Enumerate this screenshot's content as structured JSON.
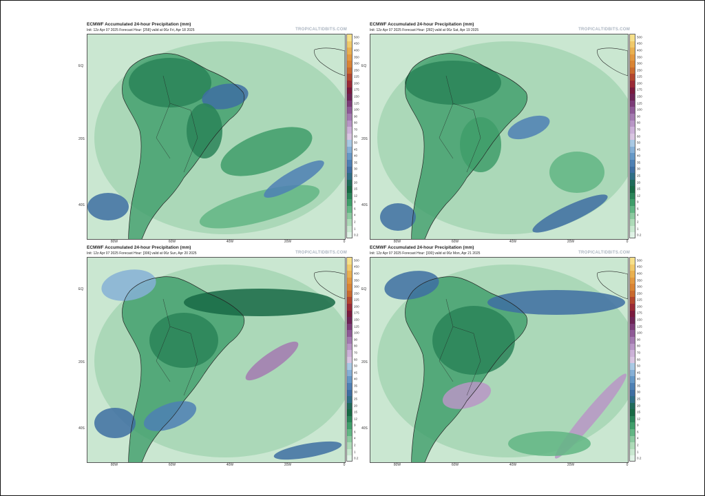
{
  "panels": [
    {
      "title": "ECMWF Accumulated 24-hour Precipitation (mm)",
      "subtitle": "Init: 12z Apr 07 2025   Forecast Hour: [258]   valid at 06z Fri, Apr 18 2025",
      "brand": "TROPICALTIDBITS.COM"
    },
    {
      "title": "ECMWF Accumulated 24-hour Precipitation (mm)",
      "subtitle": "Init: 12z Apr 07 2025   Forecast Hour: [282]   valid at 06z Sat, Apr 19 2025",
      "brand": "TROPICALTIDBITS.COM"
    },
    {
      "title": "ECMWF Accumulated 24-hour Precipitation (mm)",
      "subtitle": "Init: 12z Apr 07 2025   Forecast Hour: [306]   valid at 06z Sun, Apr 20 2025",
      "brand": "TROPICALTIDBITS.COM"
    },
    {
      "title": "ECMWF Accumulated 24-hour Precipitation (mm)",
      "subtitle": "Init: 12z Apr 07 2025   Forecast Hour: [330]   valid at 06z Mon, Apr 21 2025",
      "brand": "TROPICALTIDBITS.COM"
    }
  ],
  "lat_labels": [
    "EQ",
    "20S",
    "40S"
  ],
  "lon_labels": [
    "80W",
    "60W",
    "40W",
    "20W",
    "0"
  ],
  "colorbar": {
    "labels": [
      "500",
      "450",
      "400",
      "350",
      "300",
      "250",
      "225",
      "200",
      "175",
      "150",
      "125",
      "100",
      "90",
      "80",
      "70",
      "60",
      "50",
      "45",
      "40",
      "35",
      "30",
      "25",
      "20",
      "15",
      "12",
      "9",
      "6",
      "4",
      "2",
      "1",
      "0.2"
    ],
    "colors": [
      "#f6e08a",
      "#f0c96a",
      "#e9b050",
      "#e29840",
      "#d98434",
      "#c96a2e",
      "#b2462e",
      "#9a2a36",
      "#7a1a3e",
      "#6e2456",
      "#7c3c78",
      "#8e5a96",
      "#a37ab0",
      "#b896c6",
      "#ccb2d8",
      "#d9c6e2",
      "#a9c9e4",
      "#86b0d6",
      "#6698c6",
      "#4e80b4",
      "#3e6ea2",
      "#2e6e86",
      "#1f6b5a",
      "#186a45",
      "#2a8458",
      "#3f9e6a",
      "#62b684",
      "#8ccaa0",
      "#aedbb8",
      "#c9e8d0",
      "#e0f3e6"
    ]
  }
}
